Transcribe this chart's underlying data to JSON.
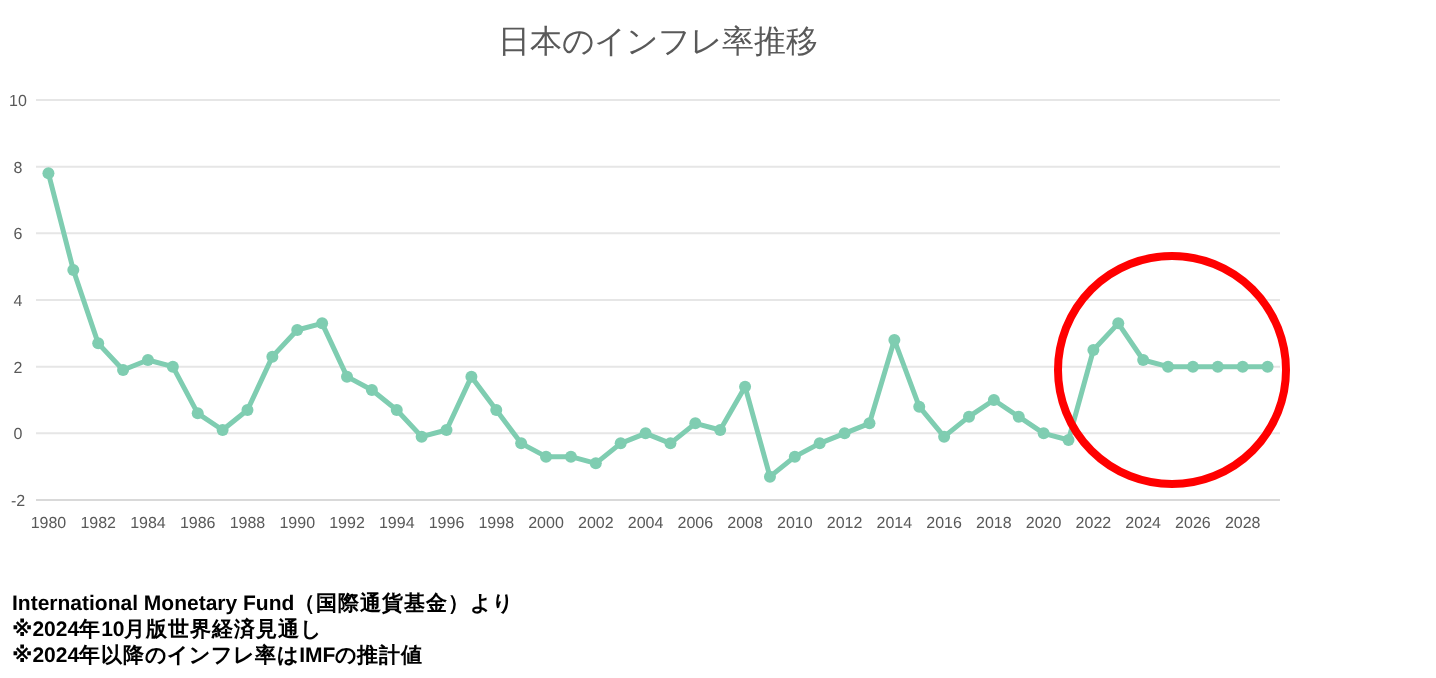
{
  "chart_data": {
    "type": "line",
    "title": "日本のインフレ率推移",
    "x": [
      1980,
      1981,
      1982,
      1983,
      1984,
      1985,
      1986,
      1987,
      1988,
      1989,
      1990,
      1991,
      1992,
      1993,
      1994,
      1995,
      1996,
      1997,
      1998,
      1999,
      2000,
      2001,
      2002,
      2003,
      2004,
      2005,
      2006,
      2007,
      2008,
      2009,
      2010,
      2011,
      2012,
      2013,
      2014,
      2015,
      2016,
      2017,
      2018,
      2019,
      2020,
      2021,
      2022,
      2023,
      2024,
      2025,
      2026,
      2027,
      2028,
      2029
    ],
    "series": [
      {
        "color": "#7fcdb1",
        "values": [
          7.8,
          4.9,
          2.7,
          1.9,
          2.2,
          2.0,
          0.6,
          0.1,
          0.7,
          2.3,
          3.1,
          3.3,
          1.7,
          1.3,
          0.7,
          -0.1,
          0.1,
          1.7,
          0.7,
          -0.3,
          -0.7,
          -0.7,
          -0.9,
          -0.3,
          0.0,
          -0.3,
          0.3,
          0.1,
          1.4,
          -1.3,
          -0.7,
          -0.3,
          0.0,
          0.3,
          2.8,
          0.8,
          -0.1,
          0.5,
          1.0,
          0.5,
          0.0,
          -0.2,
          2.5,
          3.3,
          2.2,
          2.0,
          2.0,
          2.0,
          2.0,
          2.0
        ]
      }
    ],
    "xlim": [
      1979.5,
      2029.5
    ],
    "xticks": [
      1980,
      1982,
      1984,
      1986,
      1988,
      1990,
      1992,
      1994,
      1996,
      1998,
      2000,
      2002,
      2004,
      2006,
      2008,
      2010,
      2012,
      2014,
      2016,
      2018,
      2020,
      2022,
      2024,
      2026,
      2028
    ],
    "ylim": [
      -2,
      10
    ],
    "yticks": [
      -2,
      0,
      2,
      4,
      6,
      8,
      10
    ],
    "grid": "y",
    "marker": "circle",
    "line_style": "solid",
    "annotations": [
      "International Monetary Fund（国際通貨基金）より",
      "※2024年10月版世界経済見通し",
      "※2024年以降のインフレ率はIMFの推計値"
    ]
  }
}
